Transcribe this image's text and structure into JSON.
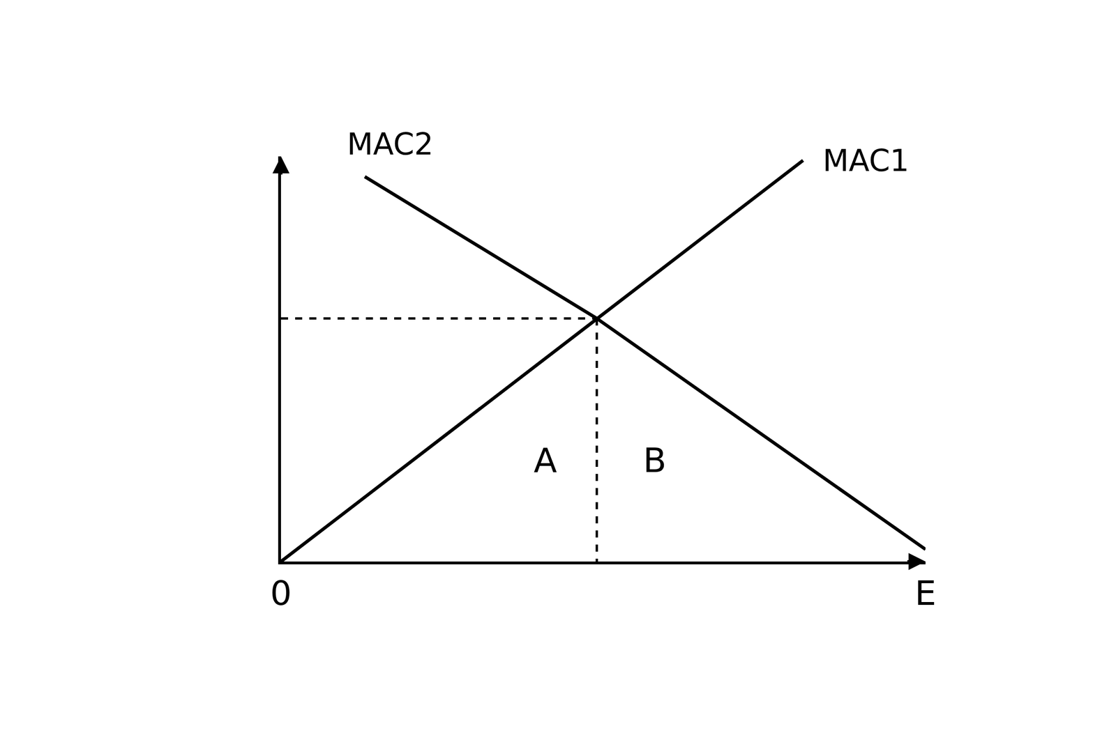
{
  "chart_data": {
    "type": "line",
    "series": [
      {
        "name": "MAC2",
        "color": "#000000",
        "line_style": "solid",
        "x": [
          1.3,
          4.9,
          10
        ],
        "values": [
          9.5,
          6.0,
          0.3
        ]
      },
      {
        "name": "MAC1",
        "color": "#000000",
        "line_style": "solid",
        "x": [
          0,
          8.1
        ],
        "values": [
          0,
          9.9
        ]
      },
      {
        "color": "#000000",
        "line_style": "dash",
        "x": [
          0,
          4.9
        ],
        "values": [
          6.0,
          6.0
        ]
      },
      {
        "color": "#000000",
        "line_style": "dash",
        "x": [
          4.9,
          4.9
        ],
        "values": [
          6.0,
          0
        ]
      }
    ],
    "annotations": [
      {
        "text": "A",
        "x": 4.1,
        "y": 2.5
      },
      {
        "text": "B",
        "x": 5.8,
        "y": 2.5
      }
    ],
    "xlim": [
      0,
      10
    ],
    "xticks": [
      0,
      {
        "value": 10,
        "label": "E"
      }
    ],
    "ylim": [
      0,
      10
    ],
    "tick_labels": "x",
    "grid": false
  }
}
